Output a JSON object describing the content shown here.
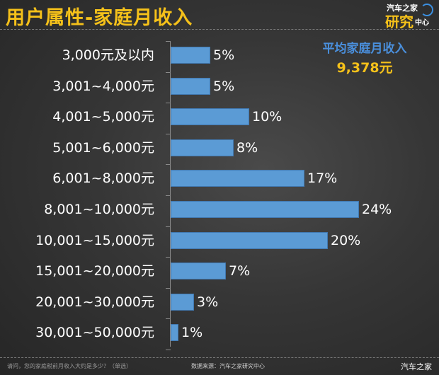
{
  "header": {
    "title": "用户属性-家庭月收入",
    "logo": {
      "line1": "汽车之家",
      "line2": "研究",
      "line3": "中心"
    }
  },
  "summary": {
    "label": "平均家庭月收入",
    "value": "9,378元"
  },
  "footer": {
    "question": "请问，您的家庭税前月收入大约是多少？（单选）",
    "source": "数据来源：汽车之家研究中心",
    "brand": "汽车之家"
  },
  "colors": {
    "title": "#f5c11a",
    "bar": "#5b9bd5",
    "summary_label": "#4a8fdc",
    "summary_value": "#f5c11a"
  },
  "chart_data": {
    "type": "bar",
    "orientation": "horizontal",
    "title": "用户属性-家庭月收入",
    "xlabel": "",
    "ylabel": "",
    "categories": [
      "3,000元及以内",
      "3,001~4,000元",
      "4,001~5,000元",
      "5,001~6,000元",
      "6,001~8,000元",
      "8,001~10,000元",
      "10,001~15,000元",
      "15,001~20,000元",
      "20,001~30,000元",
      "30,001~50,000元"
    ],
    "values": [
      5,
      5,
      10,
      8,
      17,
      24,
      20,
      7,
      3,
      1
    ],
    "labels": [
      "5%",
      "5%",
      "10%",
      "8%",
      "17%",
      "24%",
      "20%",
      "7%",
      "3%",
      "1%"
    ],
    "unit": "%",
    "annotation": "平均家庭月收入 9,378元",
    "grid": false,
    "legend": "none"
  }
}
